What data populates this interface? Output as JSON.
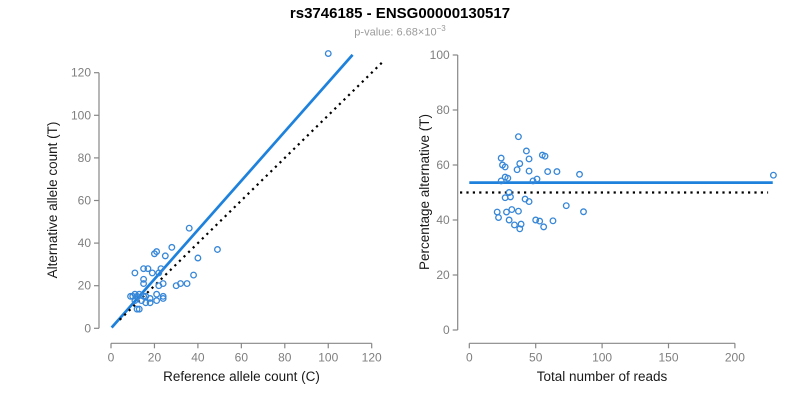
{
  "header": {
    "title": "rs3746185 - ENSG00000130517",
    "subtitle_prefix": "p-value: 6.68×10",
    "subtitle_exponent": "−3",
    "subtitle_full": "p-value: 6.68×10^−3"
  },
  "colors": {
    "line_blue": "#1e82dd",
    "point_blue": "#3787d8",
    "identity_black": "#000000",
    "axis_gray": "#878787",
    "tick_label_gray": "#7f7f7f",
    "axis_label_black": "#1a1a1a",
    "title_black": "#000000",
    "subtitle_gray": "#9b9b9b",
    "background": "#ffffff"
  },
  "chart_data": [
    {
      "type": "scatter",
      "name": "allele-counts-scatter",
      "xlabel": "Reference allele count (C)",
      "ylabel": "Alternative allele count (T)",
      "xlim": [
        0,
        126
      ],
      "ylim": [
        0,
        130
      ],
      "xticks": [
        0,
        20,
        40,
        60,
        80,
        100,
        120
      ],
      "yticks": [
        0,
        20,
        40,
        60,
        80,
        100,
        120
      ],
      "grid": false,
      "legend": "none",
      "points": [
        [
          100,
          129
        ],
        [
          36,
          47
        ],
        [
          49,
          37
        ],
        [
          40,
          33
        ],
        [
          38,
          25
        ],
        [
          35,
          21
        ],
        [
          32,
          21
        ],
        [
          28,
          38
        ],
        [
          25,
          34
        ],
        [
          21,
          36
        ],
        [
          20,
          35
        ],
        [
          11,
          26
        ],
        [
          15,
          28
        ],
        [
          17,
          28
        ],
        [
          19,
          26
        ],
        [
          15,
          23
        ],
        [
          15,
          21
        ],
        [
          13,
          16
        ],
        [
          11,
          16
        ],
        [
          9,
          15
        ],
        [
          10,
          15
        ],
        [
          12,
          15
        ],
        [
          15,
          15
        ],
        [
          11,
          13
        ],
        [
          14,
          13
        ],
        [
          16,
          12
        ],
        [
          18,
          14
        ],
        [
          21,
          13
        ],
        [
          24,
          15
        ],
        [
          24,
          14
        ],
        [
          30,
          20
        ],
        [
          22,
          20
        ],
        [
          21,
          16
        ],
        [
          13,
          9
        ],
        [
          12,
          9
        ],
        [
          16,
          15
        ],
        [
          24,
          21
        ],
        [
          22,
          26
        ],
        [
          23,
          28
        ],
        [
          18,
          12
        ]
      ],
      "lines": [
        {
          "name": "fit-line",
          "slope": 1.155,
          "intercept": 0,
          "x1": 0.3,
          "y1": 0.35,
          "x2": 111.2,
          "y2": 128.4,
          "style": "solid",
          "color_key": "line_blue",
          "width": 2.7
        },
        {
          "name": "identity-line",
          "slope": 1,
          "intercept": 0,
          "x1": 4,
          "y1": 4,
          "x2": 126,
          "y2": 126,
          "style": "dotted",
          "color_key": "identity_black",
          "width": 2.2
        }
      ]
    },
    {
      "type": "scatter",
      "name": "percentage-vs-reads-scatter",
      "xlabel": "Total number of reads",
      "ylabel": "Percentage alternative (T)",
      "xlim": [
        -8,
        232
      ],
      "ylim": [
        0,
        100
      ],
      "xticks": [
        0,
        50,
        100,
        150,
        200
      ],
      "yticks": [
        0,
        20,
        40,
        60,
        80,
        100
      ],
      "grid": false,
      "legend": "none",
      "points": [
        [
          229,
          56.3
        ],
        [
          83,
          56.6
        ],
        [
          86,
          43.0
        ],
        [
          73,
          45.2
        ],
        [
          63,
          39.7
        ],
        [
          56,
          37.5
        ],
        [
          53,
          39.6
        ],
        [
          66,
          57.6
        ],
        [
          59,
          57.6
        ],
        [
          57,
          63.2
        ],
        [
          55,
          63.6
        ],
        [
          37,
          70.3
        ],
        [
          43,
          65.1
        ],
        [
          45,
          62.2
        ],
        [
          45,
          57.8
        ],
        [
          38,
          60.5
        ],
        [
          36,
          58.3
        ],
        [
          29,
          55.2
        ],
        [
          27,
          59.3
        ],
        [
          24,
          62.5
        ],
        [
          25,
          60.0
        ],
        [
          27,
          55.6
        ],
        [
          30,
          50.0
        ],
        [
          24,
          54.2
        ],
        [
          27,
          48.1
        ],
        [
          28,
          42.9
        ],
        [
          32,
          43.8
        ],
        [
          34,
          38.2
        ],
        [
          39,
          38.5
        ],
        [
          38,
          36.8
        ],
        [
          50,
          40.0
        ],
        [
          42,
          47.6
        ],
        [
          37,
          43.2
        ],
        [
          22,
          40.9
        ],
        [
          21,
          42.9
        ],
        [
          31,
          48.4
        ],
        [
          45,
          46.7
        ],
        [
          48,
          54.2
        ],
        [
          51,
          54.9
        ],
        [
          30,
          40.0
        ]
      ],
      "lines": [
        {
          "name": "fit-line",
          "value": 53.6,
          "x1": 0,
          "y1": 53.6,
          "x2": 228.5,
          "y2": 53.6,
          "style": "solid",
          "color_key": "line_blue",
          "width": 2.7
        },
        {
          "name": "reference-line",
          "value": 50,
          "x1": -7,
          "y1": 50,
          "x2": 225,
          "y2": 50,
          "style": "dotted",
          "color_key": "identity_black",
          "width": 2.2
        }
      ]
    }
  ]
}
